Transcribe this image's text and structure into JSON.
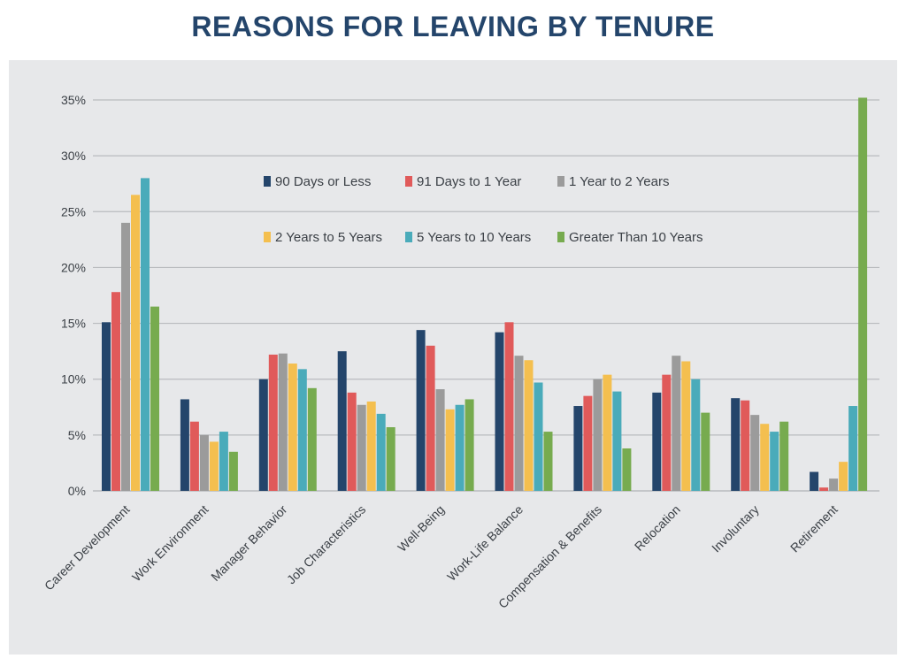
{
  "title": "REASONS FOR LEAVING BY TENURE",
  "chart_data": {
    "type": "bar",
    "categories": [
      "Career Development",
      "Work Environment",
      "Manager Behavior",
      "Job Characteristics",
      "Well-Being",
      "Work-Life Balance",
      "Compensation & Benefits",
      "Relocation",
      "Involuntary",
      "Retirement"
    ],
    "series": [
      {
        "name": "90 Days or Less",
        "color": "#24456b",
        "values": [
          15.1,
          8.2,
          10.0,
          12.5,
          14.4,
          14.2,
          7.6,
          8.8,
          8.3,
          1.7
        ]
      },
      {
        "name": "91 Days to 1 Year",
        "color": "#e05a5a",
        "values": [
          17.8,
          6.2,
          12.2,
          8.8,
          13.0,
          15.1,
          8.5,
          10.4,
          8.1,
          0.3
        ]
      },
      {
        "name": "1 Year to 2 Years",
        "color": "#9b9b9b",
        "values": [
          24.0,
          5.0,
          12.3,
          7.7,
          9.1,
          12.1,
          10.0,
          12.1,
          6.8,
          1.1
        ]
      },
      {
        "name": "2 Years to 5 Years",
        "color": "#f4bf4f",
        "values": [
          26.5,
          4.4,
          11.4,
          8.0,
          7.3,
          11.7,
          10.4,
          11.6,
          6.0,
          2.6
        ]
      },
      {
        "name": "5 Years to 10 Years",
        "color": "#4aabba",
        "values": [
          28.0,
          5.3,
          10.9,
          6.9,
          7.7,
          9.7,
          8.9,
          10.0,
          5.3,
          7.6
        ]
      },
      {
        "name": "Greater Than 10 Years",
        "color": "#77ab4f",
        "values": [
          16.5,
          3.5,
          9.2,
          5.7,
          8.2,
          5.3,
          3.8,
          7.0,
          6.2,
          35.2
        ]
      }
    ],
    "ylim": [
      0,
      35
    ],
    "y_ticks": [
      "0%",
      "5%",
      "10%",
      "15%",
      "20%",
      "25%",
      "30%",
      "35%"
    ],
    "xlabel": "",
    "ylabel": "",
    "grid": true,
    "legend": {
      "position": "top-center, inside plot",
      "columns": 3
    },
    "colors": {
      "title": "#24456b",
      "panel_background": "#e7e8ea",
      "gridline": "#b9bbbe",
      "axis_text": "#3a3f45"
    }
  }
}
